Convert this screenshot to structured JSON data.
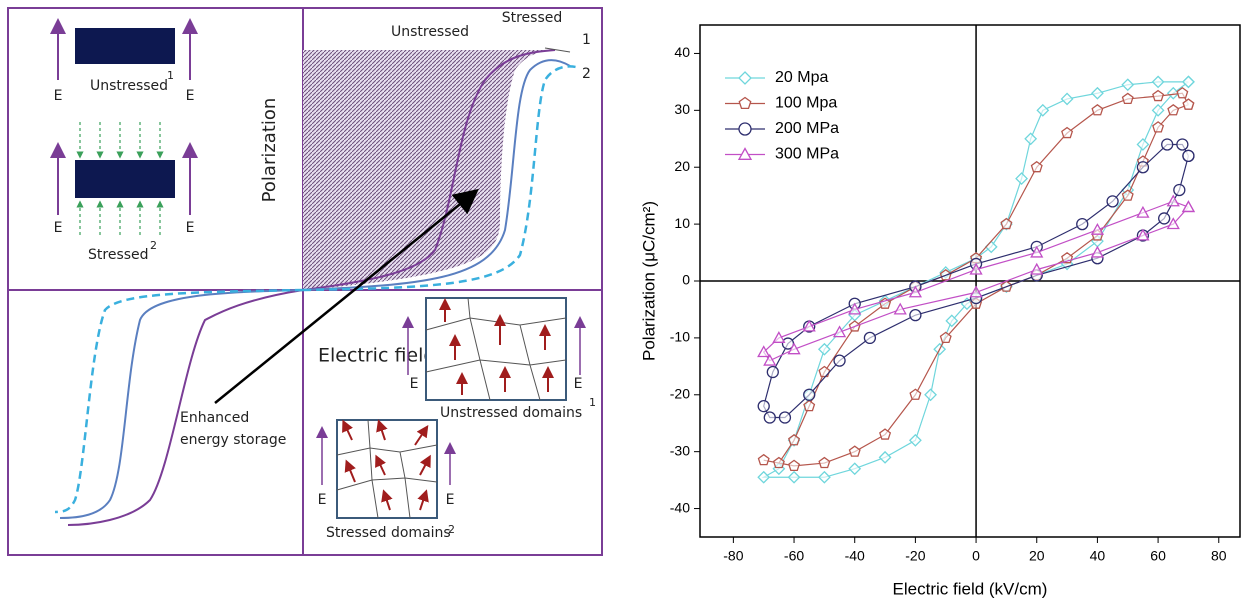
{
  "diagram": {
    "curve_labels": [
      "Unstressed",
      "Stressed",
      "1",
      "2"
    ],
    "y_label": "Polarization",
    "x_label": "Electric field",
    "unstressed_sample": {
      "label": "Unstressed",
      "sup": "1",
      "field_left": "E",
      "field_right": "E"
    },
    "stressed_sample": {
      "label": "Stressed",
      "sup": "2",
      "field_left": "E",
      "field_right": "E"
    },
    "annotation": [
      "Enhanced",
      "energy storage"
    ],
    "unstressed_domains": {
      "label": "Unstressed domains",
      "sup": "1",
      "field_left": "E",
      "field_right": "E"
    },
    "stressed_domains": {
      "label": "Stressed domains",
      "sup": "2",
      "field_left": "E",
      "field_right": "E"
    }
  },
  "chart_data": {
    "type": "line",
    "xlabel": "Electric field (kV/cm)",
    "ylabel": "Polarization (μC/cm²)",
    "xlim": [
      -91,
      87
    ],
    "ylim": [
      -45,
      45
    ],
    "xticks": [
      -80,
      -60,
      -40,
      -20,
      0,
      20,
      40,
      60,
      80
    ],
    "yticks": [
      -40,
      -30,
      -20,
      -10,
      0,
      10,
      20,
      30,
      40
    ],
    "legend": "upper left",
    "series": [
      {
        "name": "20 Mpa",
        "color": "#6fd6dc",
        "marker": "diamond",
        "x": [
          70,
          60,
          50,
          40,
          30,
          22,
          18,
          15,
          10,
          5,
          0,
          -10,
          -20,
          -30,
          -40,
          -50,
          -55,
          -60,
          -65,
          -70,
          -60,
          -50,
          -40,
          -30,
          -20,
          -15,
          -12,
          -8,
          -3,
          0,
          10,
          20,
          30,
          40,
          50,
          55,
          60,
          65,
          70
        ],
        "values": [
          35,
          35,
          34.5,
          33,
          32,
          30,
          25,
          18,
          10,
          6,
          4,
          1.5,
          -1,
          -3.5,
          -6,
          -12,
          -20,
          -28,
          -33,
          -34.5,
          -34.5,
          -34.5,
          -33,
          -31,
          -28,
          -20,
          -12,
          -7,
          -4,
          -3,
          -1,
          1,
          3,
          7,
          16,
          24,
          30,
          33,
          35
        ]
      },
      {
        "name": "100 Mpa",
        "color": "#b5564c",
        "marker": "pentagon",
        "x": [
          70,
          68,
          60,
          50,
          40,
          30,
          20,
          10,
          0,
          -10,
          -20,
          -30,
          -40,
          -50,
          -55,
          -60,
          -65,
          -70,
          -60,
          -50,
          -40,
          -30,
          -20,
          -10,
          0,
          10,
          20,
          30,
          40,
          50,
          55,
          60,
          65,
          70
        ],
        "values": [
          31,
          33,
          32.5,
          32,
          30,
          26,
          20,
          10,
          4,
          1,
          -1,
          -4,
          -8,
          -16,
          -22,
          -28,
          -32,
          -31.5,
          -32.5,
          -32,
          -30,
          -27,
          -20,
          -10,
          -4,
          -1,
          1,
          4,
          8,
          15,
          21,
          27,
          30,
          31
        ]
      },
      {
        "name": "200 MPa",
        "color": "#2e2e6e",
        "marker": "circle",
        "x": [
          70,
          68,
          63,
          55,
          45,
          35,
          20,
          0,
          -20,
          -40,
          -55,
          -62,
          -67,
          -70,
          -68,
          -63,
          -55,
          -45,
          -35,
          -20,
          0,
          20,
          40,
          55,
          62,
          67,
          70
        ],
        "values": [
          22,
          24,
          24,
          20,
          14,
          10,
          6,
          3,
          -1,
          -4,
          -8,
          -11,
          -16,
          -22,
          -24,
          -24,
          -20,
          -14,
          -10,
          -6,
          -3,
          1,
          4,
          8,
          11,
          16,
          22
        ]
      },
      {
        "name": "300 MPa",
        "color": "#c24fc6",
        "marker": "triangle",
        "x": [
          70,
          65,
          55,
          40,
          20,
          0,
          -20,
          -40,
          -55,
          -65,
          -70,
          -68,
          -60,
          -45,
          -25,
          0,
          20,
          40,
          55,
          65,
          70
        ],
        "values": [
          13,
          14,
          12,
          9,
          5,
          2,
          -2,
          -5,
          -8,
          -10,
          -12.5,
          -14,
          -12,
          -9,
          -5,
          -2,
          2,
          5,
          8,
          10,
          13
        ]
      }
    ]
  }
}
